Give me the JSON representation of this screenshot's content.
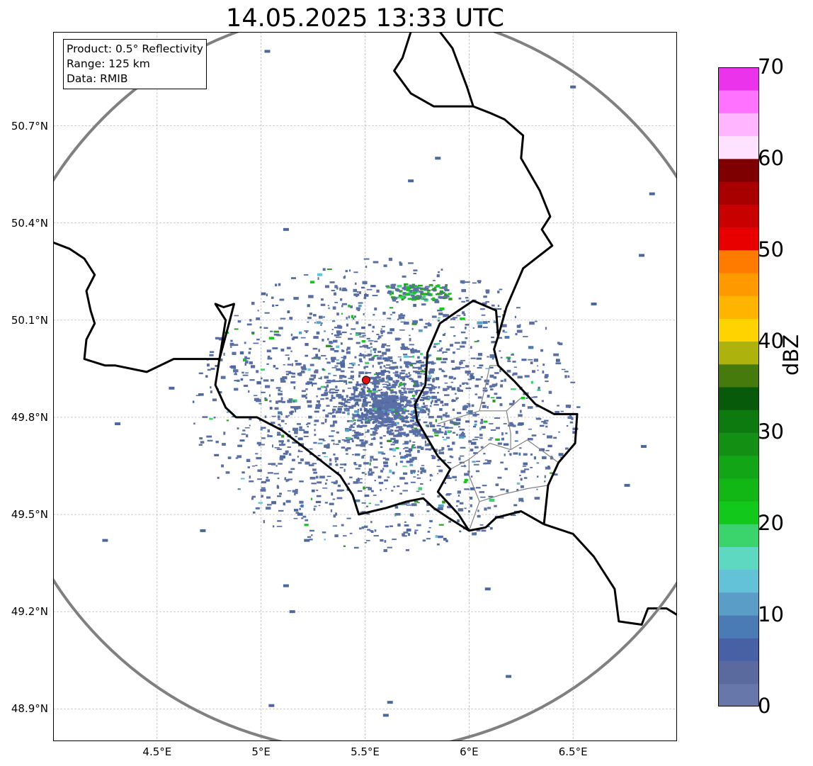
{
  "title": "14.05.2025 13:33 UTC",
  "info": {
    "product": "Product: 0.5° Reflectivity",
    "range": "Range: 125 km",
    "data": "Data: RMIB"
  },
  "map": {
    "extent": {
      "lon": [
        4.0,
        7.0
      ],
      "lat": [
        48.8,
        50.99
      ]
    },
    "radar_site": {
      "lon": 5.505,
      "lat": 49.915,
      "color": "#e01010"
    },
    "range_ring_km": 125,
    "lat_ticks": [
      "50.7°N",
      "50.4°N",
      "50.1°N",
      "49.8°N",
      "49.5°N",
      "49.2°N",
      "48.9°N"
    ],
    "lat_tick_values": [
      50.7,
      50.4,
      50.1,
      49.8,
      49.5,
      49.2,
      48.9
    ],
    "lon_ticks": [
      "4.5°E",
      "5°E",
      "5.5°E",
      "6°E",
      "6.5°E"
    ],
    "lon_tick_values": [
      4.5,
      5.0,
      5.5,
      6.0,
      6.5
    ],
    "gridlines": true,
    "borders": {
      "belgium_france": [
        [
          4.0,
          50.34
        ],
        [
          4.08,
          50.32
        ],
        [
          4.15,
          50.29
        ],
        [
          4.2,
          50.24
        ],
        [
          4.16,
          50.19
        ],
        [
          4.18,
          50.13
        ],
        [
          4.2,
          50.09
        ],
        [
          4.16,
          50.04
        ],
        [
          4.15,
          49.98
        ],
        [
          4.25,
          49.96
        ],
        [
          4.3,
          49.96
        ],
        [
          4.45,
          49.94
        ],
        [
          4.58,
          49.98
        ],
        [
          4.72,
          49.98
        ],
        [
          4.8,
          49.98
        ],
        [
          4.85,
          50.1
        ],
        [
          4.87,
          50.15
        ],
        [
          4.82,
          50.14
        ],
        [
          4.78,
          50.15
        ],
        [
          4.83,
          50.1
        ],
        [
          4.8,
          49.98
        ]
      ],
      "belgium_france_b": [
        [
          4.8,
          49.98
        ],
        [
          4.78,
          49.9
        ],
        [
          4.83,
          49.83
        ],
        [
          4.88,
          49.8
        ],
        [
          4.98,
          49.8
        ],
        [
          5.1,
          49.76
        ],
        [
          5.22,
          49.7
        ],
        [
          5.32,
          49.65
        ],
        [
          5.38,
          49.62
        ],
        [
          5.44,
          49.56
        ],
        [
          5.47,
          49.5
        ],
        [
          5.6,
          49.52
        ],
        [
          5.7,
          49.54
        ],
        [
          5.78,
          49.55
        ],
        [
          5.83,
          49.52
        ],
        [
          5.9,
          49.49
        ],
        [
          6.0,
          49.45
        ],
        [
          6.08,
          49.46
        ],
        [
          6.13,
          49.49
        ],
        [
          6.25,
          49.51
        ],
        [
          6.36,
          49.47
        ]
      ],
      "belgium_lux": [
        [
          6.0,
          49.45
        ],
        [
          5.95,
          49.5
        ],
        [
          5.85,
          49.57
        ],
        [
          5.91,
          49.64
        ],
        [
          5.85,
          49.68
        ],
        [
          5.75,
          49.79
        ],
        [
          5.74,
          49.84
        ],
        [
          5.79,
          49.9
        ],
        [
          5.8,
          50.0
        ],
        [
          5.86,
          50.09
        ],
        [
          5.95,
          50.13
        ],
        [
          6.02,
          50.16
        ],
        [
          6.13,
          50.13
        ],
        [
          6.14,
          50.05
        ]
      ],
      "lux_germany": [
        [
          6.14,
          50.05
        ],
        [
          6.12,
          50.01
        ],
        [
          6.14,
          49.96
        ],
        [
          6.22,
          49.91
        ],
        [
          6.32,
          49.84
        ],
        [
          6.41,
          49.81
        ],
        [
          6.52,
          49.81
        ],
        [
          6.51,
          49.72
        ],
        [
          6.43,
          49.66
        ],
        [
          6.38,
          49.59
        ],
        [
          6.36,
          49.47
        ]
      ],
      "belgium_germany": [
        [
          6.14,
          50.05
        ],
        [
          6.18,
          50.14
        ],
        [
          6.26,
          50.26
        ],
        [
          6.4,
          50.33
        ],
        [
          6.35,
          50.38
        ],
        [
          6.39,
          50.42
        ],
        [
          6.34,
          50.5
        ],
        [
          6.25,
          50.6
        ],
        [
          6.26,
          50.67
        ],
        [
          6.17,
          50.72
        ],
        [
          6.1,
          50.74
        ],
        [
          6.02,
          50.76
        ],
        [
          5.99,
          50.82
        ],
        [
          5.92,
          50.94
        ],
        [
          5.86,
          50.99
        ]
      ],
      "netherlands": [
        [
          5.72,
          50.99
        ],
        [
          5.68,
          50.91
        ],
        [
          5.64,
          50.87
        ],
        [
          5.72,
          50.8
        ],
        [
          5.83,
          50.76
        ],
        [
          5.88,
          50.76
        ],
        [
          6.02,
          50.76
        ]
      ],
      "france_germany": [
        [
          6.36,
          49.47
        ],
        [
          6.5,
          49.44
        ],
        [
          6.6,
          49.37
        ],
        [
          6.7,
          49.27
        ],
        [
          6.72,
          49.17
        ],
        [
          6.83,
          49.16
        ],
        [
          6.86,
          49.21
        ],
        [
          6.95,
          49.21
        ],
        [
          7.0,
          49.19
        ]
      ]
    },
    "internal_lines": [
      [
        [
          5.91,
          49.64
        ],
        [
          6.0,
          49.67
        ],
        [
          6.1,
          49.72
        ],
        [
          6.2,
          49.7
        ],
        [
          6.28,
          49.73
        ],
        [
          6.43,
          49.66
        ]
      ],
      [
        [
          5.85,
          49.78
        ],
        [
          5.95,
          49.8
        ],
        [
          6.05,
          49.82
        ],
        [
          6.18,
          49.82
        ],
        [
          6.25,
          49.86
        ]
      ],
      [
        [
          6.0,
          49.45
        ],
        [
          6.05,
          49.54
        ],
        [
          6.15,
          49.56
        ],
        [
          6.28,
          49.58
        ],
        [
          6.38,
          49.59
        ]
      ],
      [
        [
          6.05,
          49.54
        ],
        [
          6.0,
          49.62
        ],
        [
          6.0,
          49.67
        ]
      ],
      [
        [
          6.05,
          49.82
        ],
        [
          6.08,
          49.9
        ],
        [
          6.1,
          49.96
        ],
        [
          6.14,
          49.96
        ]
      ],
      [
        [
          6.18,
          49.82
        ],
        [
          6.2,
          49.75
        ],
        [
          6.2,
          49.7
        ]
      ]
    ],
    "echoes": {
      "core_count": 2600,
      "seed": 7,
      "colors": [
        "#5a6fa5",
        "#4c67a0",
        "#4a79b4",
        "#59a0c8",
        "#63c2d7",
        "#3dd16f",
        "#13c91a",
        "#2b9c1e"
      ]
    },
    "stray_echo_blobs": [
      {
        "lon": 5.03,
        "lat": 50.93
      },
      {
        "lon": 6.5,
        "lat": 50.82
      },
      {
        "lon": 5.22,
        "lat": 49.42
      },
      {
        "lon": 4.25,
        "lat": 49.42
      },
      {
        "lon": 4.72,
        "lat": 49.45
      },
      {
        "lon": 5.15,
        "lat": 49.2
      },
      {
        "lon": 5.12,
        "lat": 49.28
      },
      {
        "lon": 5.62,
        "lat": 48.92
      },
      {
        "lon": 5.6,
        "lat": 48.88
      },
      {
        "lon": 5.05,
        "lat": 48.91
      },
      {
        "lon": 6.19,
        "lat": 49.0
      },
      {
        "lon": 6.84,
        "lat": 49.71
      },
      {
        "lon": 6.76,
        "lat": 49.59
      },
      {
        "lon": 6.88,
        "lat": 50.49
      },
      {
        "lon": 6.6,
        "lat": 50.15
      },
      {
        "lon": 6.83,
        "lat": 50.3
      },
      {
        "lon": 5.12,
        "lat": 50.38
      },
      {
        "lon": 4.31,
        "lat": 49.78
      },
      {
        "lon": 5.85,
        "lat": 50.6
      },
      {
        "lon": 5.72,
        "lat": 50.53
      },
      {
        "lon": 6.35,
        "lat": 49.7
      },
      {
        "lon": 6.09,
        "lat": 49.27
      },
      {
        "lon": 6.25,
        "lat": 49.78
      },
      {
        "lon": 4.57,
        "lat": 49.89
      }
    ]
  },
  "colorbar": {
    "label": "dBZ",
    "min": 0,
    "max": 70,
    "step": 2.5,
    "ticks": [
      "0",
      "10",
      "20",
      "30",
      "40",
      "50",
      "60",
      "70"
    ],
    "colors": [
      "#6877aa",
      "#5a6a9f",
      "#4861a4",
      "#4a7bb5",
      "#5a9ec7",
      "#63c2d8",
      "#5fd8c2",
      "#3ad36c",
      "#12c81a",
      "#12b716",
      "#12a516",
      "#138f14",
      "#0d7a10",
      "#065a09",
      "#467a0d",
      "#adb20d",
      "#ffd300",
      "#ffb400",
      "#ff9900",
      "#ff7b00",
      "#e80000",
      "#c80000",
      "#a80000",
      "#7f0000",
      "#ffe2ff",
      "#ffb5ff",
      "#ff72ff",
      "#ea33ea"
    ]
  }
}
